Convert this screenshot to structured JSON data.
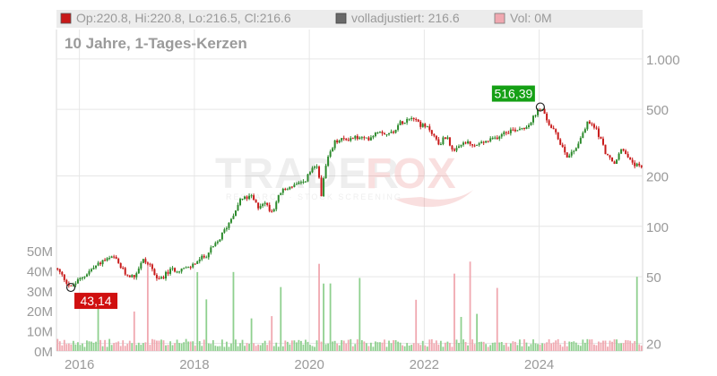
{
  "legend": {
    "ohlc": "Op:220.8, Hi:220.8, Lo:216.5, Cl:216.6",
    "adjusted": "volladjustiert: 216.6",
    "volume": "Vol: 0M"
  },
  "subtitle": "10 Jahre, 1-Tages-Kerzen",
  "watermark": {
    "brand_left": "TRADER",
    "brand_right": "FOX",
    "tagline": "RESEARCH · STOCK SCREENING"
  },
  "colors": {
    "up": "#2c8a2c",
    "down": "#c81a1a",
    "volume_up": "#8fd08f",
    "volume_down": "#f0a8b0",
    "high_badge": "#15a015",
    "low_badge": "#d01010",
    "grid": "#e6e6e6",
    "legend_band": "#ececec",
    "axis_text": "#9a9a9a"
  },
  "chart_data": {
    "type": "candlestick",
    "scale": "log",
    "ylim": [
      18,
      1500
    ],
    "price_ticks": [
      {
        "value": 1000,
        "label": "1.000"
      },
      {
        "value": 500,
        "label": "500"
      },
      {
        "value": 200,
        "label": "200"
      },
      {
        "value": 100,
        "label": "100"
      },
      {
        "value": 50,
        "label": "50"
      },
      {
        "value": 20,
        "label": "20"
      }
    ],
    "x_range": [
      2015.6,
      2025.8
    ],
    "x_ticks": [
      {
        "value": 2016,
        "label": "2016"
      },
      {
        "value": 2018,
        "label": "2018"
      },
      {
        "value": 2020,
        "label": "2020"
      },
      {
        "value": 2022,
        "label": "2022"
      },
      {
        "value": 2024,
        "label": "2024"
      }
    ],
    "volume_ticks": [
      {
        "value": 50,
        "label": "50M"
      },
      {
        "value": 40,
        "label": "40M"
      },
      {
        "value": 30,
        "label": "30M"
      },
      {
        "value": 20,
        "label": "20M"
      },
      {
        "value": 10,
        "label": "10M"
      },
      {
        "value": 0,
        "label": "0M"
      }
    ],
    "volume_ylim": [
      0,
      50
    ],
    "price_path": [
      [
        2015.6,
        56
      ],
      [
        2015.75,
        48
      ],
      [
        2015.85,
        43.14
      ],
      [
        2016.0,
        48
      ],
      [
        2016.2,
        55
      ],
      [
        2016.4,
        62
      ],
      [
        2016.6,
        65
      ],
      [
        2016.8,
        52
      ],
      [
        2016.95,
        50
      ],
      [
        2017.1,
        63
      ],
      [
        2017.25,
        58
      ],
      [
        2017.35,
        47
      ],
      [
        2017.6,
        55
      ],
      [
        2017.9,
        56
      ],
      [
        2018.0,
        60
      ],
      [
        2018.2,
        67
      ],
      [
        2018.4,
        80
      ],
      [
        2018.6,
        105
      ],
      [
        2018.8,
        145
      ],
      [
        2019.0,
        150
      ],
      [
        2019.1,
        130
      ],
      [
        2019.2,
        140
      ],
      [
        2019.35,
        123
      ],
      [
        2019.5,
        160
      ],
      [
        2019.7,
        175
      ],
      [
        2019.9,
        180
      ],
      [
        2020.0,
        210
      ],
      [
        2020.15,
        230
      ],
      [
        2020.2,
        150
      ],
      [
        2020.3,
        240
      ],
      [
        2020.45,
        320
      ],
      [
        2020.6,
        330
      ],
      [
        2020.8,
        340
      ],
      [
        2021.0,
        330
      ],
      [
        2021.2,
        375
      ],
      [
        2021.4,
        355
      ],
      [
        2021.6,
        420
      ],
      [
        2021.8,
        460
      ],
      [
        2021.95,
        400
      ],
      [
        2022.1,
        380
      ],
      [
        2022.25,
        310
      ],
      [
        2022.4,
        350
      ],
      [
        2022.5,
        270
      ],
      [
        2022.7,
        320
      ],
      [
        2022.85,
        300
      ],
      [
        2023.0,
        315
      ],
      [
        2023.2,
        330
      ],
      [
        2023.4,
        370
      ],
      [
        2023.6,
        380
      ],
      [
        2023.8,
        400
      ],
      [
        2023.95,
        470
      ],
      [
        2024.02,
        516.39
      ],
      [
        2024.15,
        420
      ],
      [
        2024.3,
        350
      ],
      [
        2024.5,
        260
      ],
      [
        2024.65,
        300
      ],
      [
        2024.85,
        420
      ],
      [
        2025.0,
        380
      ],
      [
        2025.15,
        280
      ],
      [
        2025.3,
        230
      ],
      [
        2025.45,
        300
      ],
      [
        2025.55,
        250
      ],
      [
        2025.8,
        216.6
      ]
    ],
    "annotations": [
      {
        "kind": "high",
        "x": 2024.02,
        "y": 516.39,
        "label": "516,39"
      },
      {
        "kind": "low",
        "x": 2015.85,
        "y": 43.14,
        "label": "43,14"
      }
    ],
    "last": {
      "open": 220.8,
      "high": 220.8,
      "low": 216.5,
      "close": 216.6,
      "adjusted": 216.6,
      "volume_m": 0
    }
  }
}
